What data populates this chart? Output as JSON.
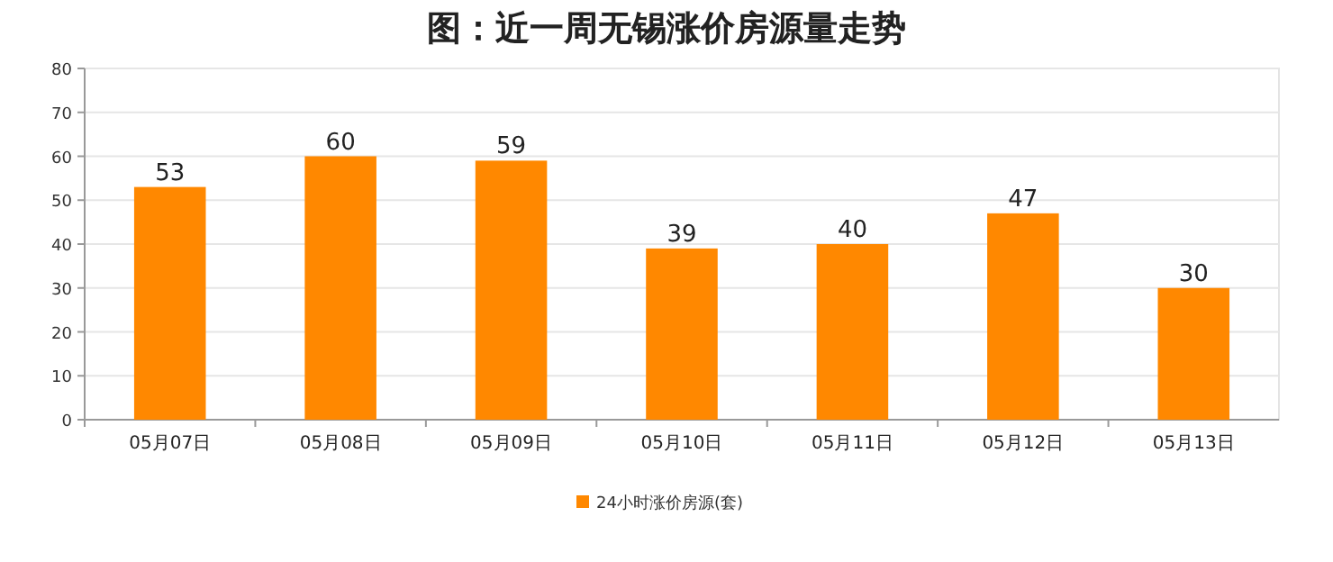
{
  "chart_data": {
    "type": "bar",
    "title": "图：近一周无锡涨价房源量走势",
    "categories": [
      "05月07日",
      "05月08日",
      "05月09日",
      "05月10日",
      "05月11日",
      "05月12日",
      "05月13日"
    ],
    "series": [
      {
        "name": "24小时涨价房源(套)",
        "color": "#ff8800",
        "values": [
          53,
          60,
          59,
          39,
          40,
          47,
          30
        ]
      }
    ],
    "ylim": [
      0,
      80
    ],
    "yticks": [
      0,
      10,
      20,
      30,
      40,
      50,
      60,
      70,
      80
    ],
    "grid": "y",
    "legend": "bottom",
    "data_labels": true
  }
}
